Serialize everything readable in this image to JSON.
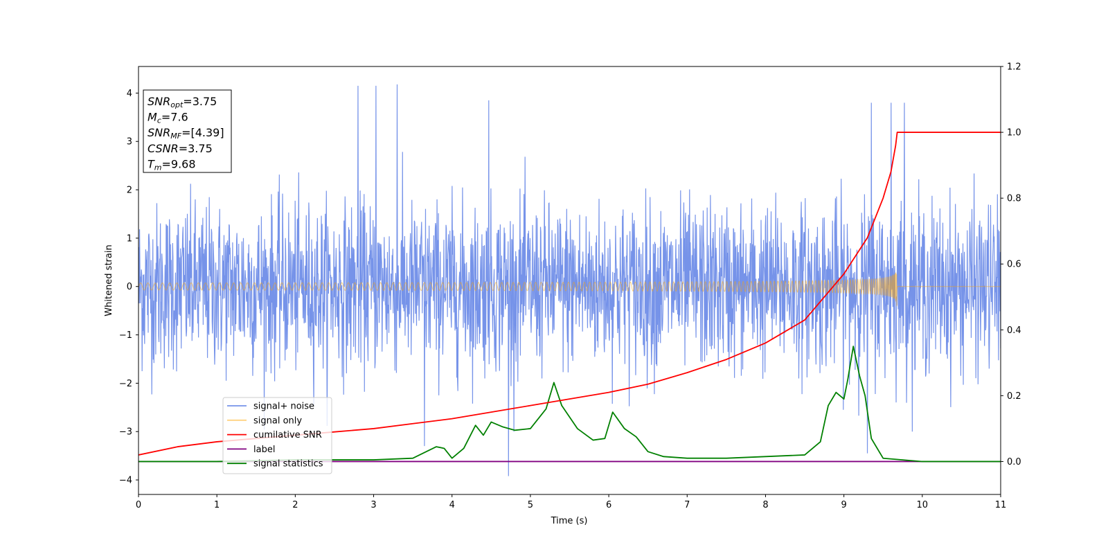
{
  "chart_data": {
    "type": "line",
    "xlabel": "Time (s)",
    "ylabel": "Whitened strain",
    "xlim": [
      0,
      11
    ],
    "ylim": [
      -4.3,
      4.55
    ],
    "y2lim": [
      -0.1,
      1.2
    ],
    "x_ticks": [
      "0",
      "1",
      "2",
      "3",
      "4",
      "5",
      "6",
      "7",
      "8",
      "9",
      "10",
      "11"
    ],
    "y_ticks": [
      "−4",
      "−3",
      "−2",
      "−1",
      "0",
      "1",
      "2",
      "3",
      "4"
    ],
    "y2_ticks": [
      "0.0",
      "0.2",
      "0.4",
      "0.6",
      "0.8",
      "1.0",
      "1.2"
    ],
    "legend": {
      "placement": "lower-left",
      "entries": [
        {
          "name": "signal+ noise",
          "color": "#4169e1"
        },
        {
          "name": "signal only",
          "color": "#ffa500"
        },
        {
          "name": "cumilative SNR",
          "color": "#ff0000"
        },
        {
          "name": "label",
          "color": "#800080"
        },
        {
          "name": "signal statistics",
          "color": "#008000"
        }
      ]
    },
    "info_box": [
      {
        "sym": "SNR",
        "sub": "opt",
        "val": "=3.75"
      },
      {
        "sym": "M",
        "sub": "c",
        "val": "=7.6"
      },
      {
        "sym": "SNR",
        "sub": "MF",
        "val": "=[4.39]"
      },
      {
        "sym": "CSNR",
        "sub": "",
        "val": "=3.75"
      },
      {
        "sym": "T",
        "sub": "m",
        "val": "=9.68"
      }
    ],
    "series": [
      {
        "name": "signal+ noise",
        "axis": "left",
        "style": "noise band",
        "envelope_upper": 2.0,
        "envelope_lower": -2.0,
        "peaks": [
          [
            2.8,
            4.15
          ],
          [
            3.03,
            4.15
          ],
          [
            3.3,
            4.18
          ],
          [
            4.47,
            3.85
          ],
          [
            9.35,
            3.8
          ],
          [
            9.6,
            3.8
          ],
          [
            9.77,
            3.8
          ],
          [
            2.8,
            -3.75
          ],
          [
            4.72,
            -3.92
          ],
          [
            3.65,
            -3.3
          ],
          [
            9.3,
            -3.45
          ]
        ]
      },
      {
        "name": "signal only",
        "axis": "left",
        "style": "chirp",
        "merger_time": 9.68,
        "peak_amplitude": 0.5
      },
      {
        "name": "cumilative SNR",
        "axis": "right",
        "x": [
          0,
          0.5,
          1,
          1.5,
          2,
          2.5,
          3,
          3.5,
          4,
          4.5,
          5,
          5.5,
          6,
          6.5,
          7,
          7.5,
          8,
          8.5,
          9,
          9.3,
          9.5,
          9.6,
          9.66,
          9.68,
          10,
          11
        ],
        "values": [
          0.02,
          0.045,
          0.06,
          0.07,
          0.08,
          0.09,
          0.1,
          0.115,
          0.13,
          0.15,
          0.17,
          0.19,
          0.21,
          0.235,
          0.27,
          0.31,
          0.36,
          0.43,
          0.57,
          0.68,
          0.8,
          0.88,
          0.96,
          1.0,
          1.0,
          1.0
        ]
      },
      {
        "name": "label",
        "axis": "right",
        "x": [
          0,
          11
        ],
        "values": [
          0,
          0
        ]
      },
      {
        "name": "signal statistics",
        "axis": "right",
        "x": [
          0,
          1,
          2,
          3,
          3.5,
          3.8,
          3.9,
          4.0,
          4.15,
          4.3,
          4.4,
          4.5,
          4.65,
          4.8,
          5.0,
          5.2,
          5.3,
          5.4,
          5.6,
          5.8,
          5.95,
          6.05,
          6.2,
          6.35,
          6.5,
          6.7,
          7.0,
          7.5,
          8.0,
          8.5,
          8.7,
          8.8,
          8.9,
          9.0,
          9.05,
          9.12,
          9.2,
          9.27,
          9.35,
          9.5,
          10.0,
          11.0
        ],
        "values": [
          0.0,
          0.0,
          0.005,
          0.005,
          0.01,
          0.045,
          0.04,
          0.01,
          0.04,
          0.11,
          0.08,
          0.12,
          0.105,
          0.095,
          0.1,
          0.16,
          0.24,
          0.17,
          0.1,
          0.065,
          0.07,
          0.15,
          0.1,
          0.075,
          0.03,
          0.015,
          0.01,
          0.01,
          0.015,
          0.02,
          0.06,
          0.17,
          0.21,
          0.19,
          0.25,
          0.35,
          0.26,
          0.2,
          0.07,
          0.01,
          0.0,
          0.0
        ]
      }
    ]
  }
}
